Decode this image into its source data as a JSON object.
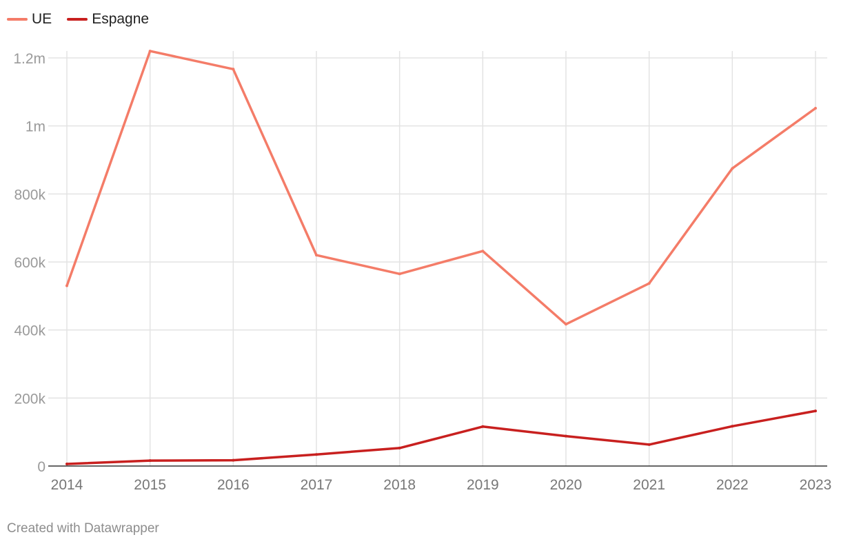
{
  "chart_data": {
    "type": "line",
    "x": [
      "2014",
      "2015",
      "2016",
      "2017",
      "2018",
      "2019",
      "2020",
      "2021",
      "2022",
      "2023"
    ],
    "series": [
      {
        "name": "UE",
        "color": "#f47c68",
        "values": [
          530000,
          1220000,
          1167000,
          620000,
          565000,
          632000,
          417000,
          537000,
          875000,
          1052000
        ]
      },
      {
        "name": "Espagne",
        "color": "#c8201f",
        "values": [
          6000,
          16000,
          17000,
          34000,
          53000,
          116000,
          88000,
          63000,
          117000,
          162000
        ]
      }
    ],
    "yticks": [
      {
        "value": 0,
        "label": "0"
      },
      {
        "value": 200000,
        "label": "200k"
      },
      {
        "value": 400000,
        "label": "400k"
      },
      {
        "value": 600000,
        "label": "600k"
      },
      {
        "value": 800000,
        "label": "800k"
      },
      {
        "value": 1000000,
        "label": "1m"
      },
      {
        "value": 1200000,
        "label": "1.2m"
      }
    ],
    "ylim": [
      0,
      1200000
    ],
    "grid": true,
    "legend_position": "top-left"
  },
  "footer": {
    "credit": "Created with Datawrapper"
  }
}
